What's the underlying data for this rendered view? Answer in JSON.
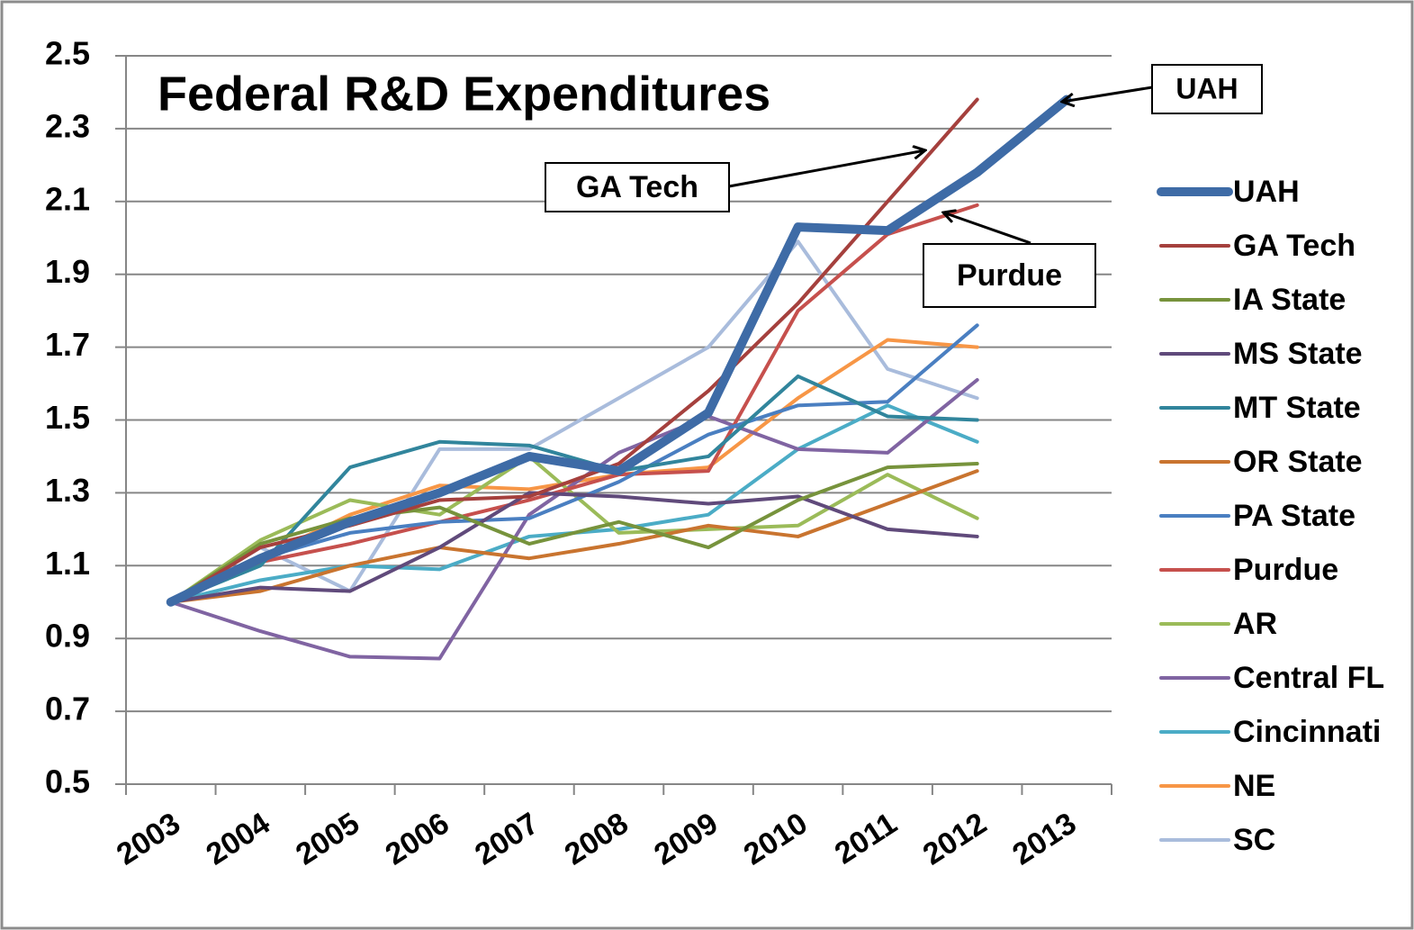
{
  "chart_data": {
    "type": "line",
    "title": "Federal R&D Expenditures",
    "categories": [
      "2003",
      "2004",
      "2005",
      "2006",
      "2007",
      "2008",
      "2009",
      "2010",
      "2011",
      "2012",
      "2013"
    ],
    "ylim": [
      0.5,
      2.5
    ],
    "yticks": [
      0.5,
      0.7,
      0.9,
      1.1,
      1.3,
      1.5,
      1.7,
      1.9,
      2.1,
      2.3,
      2.5
    ],
    "grid": true,
    "legend": "right",
    "series": [
      {
        "name": "UAH",
        "color": "#3e6ba6",
        "width": 10,
        "values": [
          1.0,
          1.12,
          1.22,
          1.3,
          1.4,
          1.36,
          1.52,
          2.03,
          2.02,
          2.18,
          2.38
        ]
      },
      {
        "name": "GA Tech",
        "color": "#a5403d",
        "width": 4,
        "values": [
          1.0,
          1.15,
          1.21,
          1.28,
          1.29,
          1.38,
          1.58,
          1.82,
          2.1,
          2.38,
          null
        ]
      },
      {
        "name": "IA State",
        "color": "#77933c",
        "width": 4,
        "values": [
          1.0,
          1.16,
          1.23,
          1.26,
          1.16,
          1.22,
          1.15,
          1.28,
          1.37,
          1.38,
          null
        ]
      },
      {
        "name": "MS State",
        "color": "#604a7b",
        "width": 4,
        "values": [
          1.0,
          1.04,
          1.03,
          1.15,
          1.3,
          1.29,
          1.27,
          1.29,
          1.2,
          1.18,
          null
        ]
      },
      {
        "name": "MT State",
        "color": "#31859c",
        "width": 4,
        "values": [
          1.0,
          1.1,
          1.37,
          1.44,
          1.43,
          1.36,
          1.4,
          1.62,
          1.51,
          1.5,
          null
        ]
      },
      {
        "name": "OR State",
        "color": "#c9742f",
        "width": 4,
        "values": [
          1.0,
          1.03,
          1.1,
          1.15,
          1.12,
          1.16,
          1.21,
          1.18,
          1.27,
          1.36,
          null
        ]
      },
      {
        "name": "PA State",
        "color": "#4a7fc1",
        "width": 4,
        "values": [
          1.0,
          1.12,
          1.19,
          1.22,
          1.23,
          1.33,
          1.46,
          1.54,
          1.55,
          1.76,
          null
        ]
      },
      {
        "name": "Purdue",
        "color": "#c6504d",
        "width": 4,
        "values": [
          1.0,
          1.11,
          1.16,
          1.22,
          1.28,
          1.35,
          1.36,
          1.8,
          2.01,
          2.09,
          null
        ]
      },
      {
        "name": "AR",
        "color": "#9bbb59",
        "width": 4,
        "values": [
          1.0,
          1.17,
          1.28,
          1.24,
          1.4,
          1.19,
          1.2,
          1.21,
          1.35,
          1.23,
          null
        ]
      },
      {
        "name": "Central FL",
        "color": "#8064a2",
        "width": 4,
        "values": [
          1.0,
          0.92,
          0.85,
          0.845,
          1.24,
          1.41,
          1.51,
          1.42,
          1.41,
          1.61,
          null
        ]
      },
      {
        "name": "Cincinnati",
        "color": "#4bacc6",
        "width": 4,
        "values": [
          1.0,
          1.06,
          1.1,
          1.09,
          1.18,
          1.2,
          1.24,
          1.42,
          1.54,
          1.44,
          null
        ]
      },
      {
        "name": "NE",
        "color": "#f79646",
        "width": 4,
        "values": [
          1.0,
          1.12,
          1.24,
          1.32,
          1.31,
          1.35,
          1.37,
          1.56,
          1.72,
          1.7,
          null
        ]
      },
      {
        "name": "SC",
        "color": "#a9bcdc",
        "width": 4,
        "values": [
          1.0,
          1.15,
          1.03,
          1.42,
          1.42,
          1.56,
          1.7,
          1.99,
          1.64,
          1.56,
          null
        ]
      }
    ],
    "annotations": [
      "UAH",
      "GA Tech",
      "Purdue"
    ]
  }
}
